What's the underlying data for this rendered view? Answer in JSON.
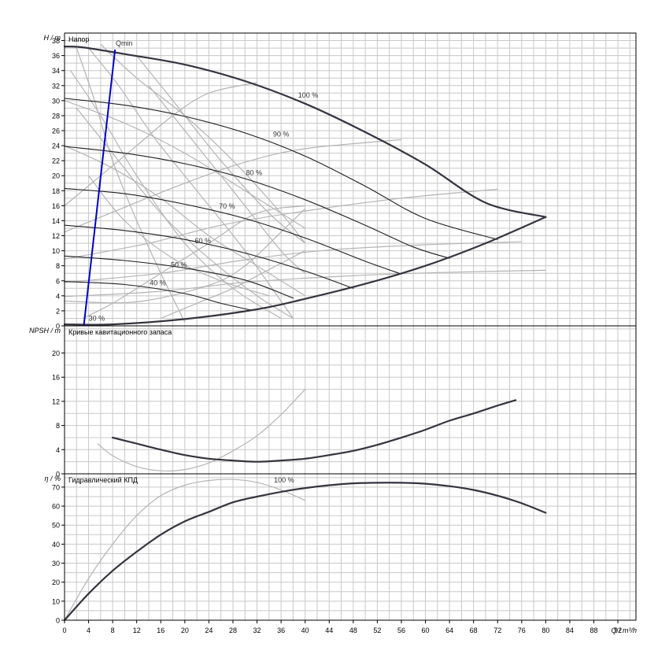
{
  "chart_data": [
    {
      "type": "line",
      "panel": "head",
      "title": "Напор",
      "ylabel": "H / m",
      "xlabel": "Q / m³/h",
      "xlim": [
        0,
        95
      ],
      "ylim": [
        0,
        39
      ],
      "yticks": [
        0,
        2,
        4,
        6,
        8,
        10,
        12,
        14,
        16,
        18,
        20,
        22,
        24,
        26,
        28,
        30,
        32,
        34,
        36,
        38
      ],
      "grid": true,
      "series": [
        {
          "name": "100 %",
          "label_at": [
            40.5,
            30.4
          ],
          "points": [
            [
              0,
              37.2
            ],
            [
              3,
              37.1
            ],
            [
              10,
              36.2
            ],
            [
              20,
              34.8
            ],
            [
              30,
              32.6
            ],
            [
              40,
              29.6
            ],
            [
              50,
              25.8
            ],
            [
              60,
              21.5
            ],
            [
              70,
              16.4
            ],
            [
              80,
              14.5
            ]
          ]
        },
        {
          "name": "90 %",
          "label_at": [
            36,
            25.2
          ],
          "points": [
            [
              0,
              30.3
            ],
            [
              10,
              29.4
            ],
            [
              20,
              27.9
            ],
            [
              30,
              25.7
            ],
            [
              40,
              22.6
            ],
            [
              50,
              18.6
            ],
            [
              60,
              14.3
            ],
            [
              72,
              11.5
            ]
          ]
        },
        {
          "name": "80 %",
          "label_at": [
            31.5,
            20.1
          ],
          "points": [
            [
              0,
              23.9
            ],
            [
              10,
              23.0
            ],
            [
              20,
              21.6
            ],
            [
              30,
              19.6
            ],
            [
              40,
              16.8
            ],
            [
              50,
              13.4
            ],
            [
              58,
              10.5
            ],
            [
              64,
              9.0
            ]
          ]
        },
        {
          "name": "70 %",
          "label_at": [
            27,
            15.6
          ],
          "points": [
            [
              0,
              18.3
            ],
            [
              10,
              17.6
            ],
            [
              20,
              16.2
            ],
            [
              30,
              14.3
            ],
            [
              40,
              11.7
            ],
            [
              50,
              8.6
            ],
            [
              56,
              6.9
            ]
          ]
        },
        {
          "name": "60 %",
          "label_at": [
            23,
            11.0
          ],
          "points": [
            [
              0,
              13.4
            ],
            [
              10,
              12.7
            ],
            [
              20,
              11.5
            ],
            [
              30,
              9.7
            ],
            [
              40,
              7.3
            ],
            [
              48,
              5.0
            ]
          ]
        },
        {
          "name": "50 %",
          "label_at": [
            19,
            7.8
          ],
          "points": [
            [
              0,
              9.3
            ],
            [
              10,
              8.7
            ],
            [
              20,
              7.7
            ],
            [
              30,
              6.1
            ],
            [
              38,
              3.7
            ]
          ]
        },
        {
          "name": "40 %",
          "label_at": [
            15.5,
            5.4
          ],
          "points": [
            [
              0,
              5.9
            ],
            [
              10,
              5.5
            ],
            [
              20,
              4.3
            ],
            [
              26,
              3.0
            ],
            [
              31,
              2.1
            ]
          ]
        },
        {
          "name": "",
          "role": "min-curve",
          "points": [
            [
              0,
              0.2
            ],
            [
              8,
              0.2
            ],
            [
              20,
              0.9
            ],
            [
              32,
              2.2
            ],
            [
              40,
              3.6
            ],
            [
              50,
              5.6
            ],
            [
              60,
              8.0
            ],
            [
              70,
              11.0
            ],
            [
              80,
              14.5
            ]
          ]
        }
      ],
      "annotations": [
        {
          "text": "Qmin",
          "at": [
            8.5,
            37.3
          ]
        },
        {
          "text": "30 %",
          "at": [
            4,
            0.7
          ]
        }
      ],
      "qmin_line": [
        [
          3.2,
          0
        ],
        [
          8.4,
          36.8
        ]
      ],
      "bg_curves": [
        [
          [
            2,
            37
          ],
          [
            5,
            30
          ],
          [
            8,
            22
          ],
          [
            12,
            14
          ],
          [
            16,
            7
          ],
          [
            20,
            0.5
          ]
        ],
        [
          [
            4,
            37
          ],
          [
            9,
            32
          ],
          [
            15,
            25
          ],
          [
            22,
            18
          ],
          [
            30,
            10
          ],
          [
            38,
            1
          ]
        ],
        [
          [
            6,
            37.5
          ],
          [
            12,
            33
          ],
          [
            20,
            28
          ],
          [
            28,
            22
          ],
          [
            36,
            15
          ],
          [
            40,
            11
          ]
        ],
        [
          [
            0,
            16
          ],
          [
            6,
            20
          ],
          [
            12,
            24
          ],
          [
            18,
            28
          ],
          [
            24,
            31
          ],
          [
            32,
            32.4
          ]
        ],
        [
          [
            0,
            12.5
          ],
          [
            10,
            15.8
          ],
          [
            20,
            19
          ],
          [
            30,
            21.8
          ],
          [
            40,
            23.6
          ],
          [
            56,
            24.8
          ]
        ],
        [
          [
            0,
            8.9
          ],
          [
            14,
            11
          ],
          [
            26,
            13.4
          ],
          [
            40,
            15.3
          ],
          [
            56,
            17
          ],
          [
            72,
            18.2
          ]
        ],
        [
          [
            0,
            5.8
          ],
          [
            16,
            7
          ],
          [
            30,
            8.8
          ],
          [
            44,
            10.1
          ],
          [
            60,
            10.8
          ],
          [
            76,
            11.2
          ]
        ],
        [
          [
            0,
            3.9
          ],
          [
            16,
            4.6
          ],
          [
            30,
            5.8
          ],
          [
            46,
            6.6
          ],
          [
            62,
            7.1
          ],
          [
            80,
            7.4
          ]
        ],
        [
          [
            2,
            29
          ],
          [
            8,
            23
          ],
          [
            16,
            15
          ],
          [
            24,
            9
          ],
          [
            32,
            4
          ],
          [
            38,
            1
          ]
        ],
        [
          [
            1,
            34
          ],
          [
            6,
            28
          ],
          [
            12,
            20
          ],
          [
            20,
            11
          ],
          [
            28,
            5
          ],
          [
            36,
            1
          ]
        ],
        [
          [
            12,
            36
          ],
          [
            18,
            30
          ],
          [
            26,
            22
          ],
          [
            34,
            15
          ],
          [
            40,
            11
          ]
        ],
        [
          [
            14,
            32
          ],
          [
            20,
            26
          ],
          [
            28,
            18
          ],
          [
            36,
            10
          ],
          [
            40,
            7
          ]
        ],
        [
          [
            4,
            20
          ],
          [
            10,
            14
          ],
          [
            18,
            9
          ],
          [
            26,
            6
          ],
          [
            34,
            4
          ]
        ],
        [
          [
            0,
            3.3
          ],
          [
            12,
            3.2
          ],
          [
            24,
            5.4
          ],
          [
            30,
            8
          ],
          [
            36,
            12.5
          ],
          [
            40,
            15.6
          ]
        ],
        [
          [
            3,
            1
          ],
          [
            8,
            3
          ],
          [
            16,
            7
          ],
          [
            24,
            11
          ],
          [
            32,
            15
          ],
          [
            40,
            16
          ]
        ],
        [
          [
            16,
            1
          ],
          [
            22,
            3
          ],
          [
            28,
            5
          ],
          [
            34,
            7.5
          ],
          [
            40,
            10
          ]
        ],
        [
          [
            0,
            24
          ],
          [
            8,
            21
          ],
          [
            16,
            17
          ],
          [
            24,
            12
          ],
          [
            32,
            8
          ],
          [
            40,
            4
          ]
        ],
        [
          [
            0,
            30
          ],
          [
            10,
            27
          ],
          [
            20,
            23
          ],
          [
            30,
            18
          ],
          [
            40,
            13
          ]
        ]
      ]
    },
    {
      "type": "line",
      "panel": "npsh",
      "title": "Кривые кавитационного запаса",
      "ylabel": "NPSH / m",
      "xlim": [
        0,
        95
      ],
      "ylim": [
        0,
        24.5
      ],
      "yticks": [
        0,
        4,
        8,
        12,
        16,
        20
      ],
      "grid": true,
      "series": [
        {
          "name": "",
          "points": [
            [
              8,
              6.0
            ],
            [
              12,
              5.0
            ],
            [
              16,
              4.0
            ],
            [
              20,
              3.1
            ],
            [
              24,
              2.5
            ],
            [
              28,
              2.2
            ],
            [
              32,
              2.0
            ],
            [
              36,
              2.2
            ],
            [
              40,
              2.5
            ],
            [
              44,
              3.1
            ],
            [
              48,
              3.8
            ],
            [
              52,
              4.8
            ],
            [
              56,
              6.0
            ],
            [
              60,
              7.3
            ],
            [
              64,
              8.8
            ],
            [
              68,
              10.0
            ],
            [
              72,
              11.3
            ],
            [
              75,
              12.2
            ]
          ]
        }
      ],
      "bg_curves": [
        [
          [
            5.5,
            5.0
          ],
          [
            8,
            3.0
          ],
          [
            12,
            1.2
          ],
          [
            16,
            0.5
          ],
          [
            20,
            0.7
          ],
          [
            24,
            1.8
          ],
          [
            28,
            3.8
          ],
          [
            32,
            6.3
          ],
          [
            36,
            9.8
          ],
          [
            40,
            14.0
          ]
        ]
      ]
    },
    {
      "type": "line",
      "panel": "eta",
      "title": "Гидравлический КПД",
      "ylabel": "η / %",
      "xlim": [
        0,
        95
      ],
      "ylim": [
        0,
        77
      ],
      "yticks": [
        0,
        10,
        20,
        30,
        40,
        50,
        60,
        70
      ],
      "grid": true,
      "series": [
        {
          "name": "100 %",
          "label_at": [
            36.5,
            72.5
          ],
          "points": [
            [
              0,
              0
            ],
            [
              4,
              14
            ],
            [
              8,
              26
            ],
            [
              12,
              36
            ],
            [
              16,
              45
            ],
            [
              20,
              52
            ],
            [
              24,
              57
            ],
            [
              28,
              62
            ],
            [
              32,
              65
            ],
            [
              36,
              67.5
            ],
            [
              40,
              69.5
            ],
            [
              44,
              71
            ],
            [
              48,
              72
            ],
            [
              52,
              72.3
            ],
            [
              56,
              72.3
            ],
            [
              60,
              71.8
            ],
            [
              64,
              70.5
            ],
            [
              68,
              68.5
            ],
            [
              72,
              65.5
            ],
            [
              76,
              61.5
            ],
            [
              80,
              56.5
            ]
          ]
        }
      ],
      "bg_curves": [
        [
          [
            0,
            0
          ],
          [
            4,
            22
          ],
          [
            8,
            40
          ],
          [
            12,
            55
          ],
          [
            16,
            65.5
          ],
          [
            20,
            71
          ],
          [
            24,
            73.5
          ],
          [
            28,
            74
          ],
          [
            32,
            72.5
          ],
          [
            36,
            68.5
          ],
          [
            40,
            63
          ]
        ]
      ]
    }
  ],
  "x_axis": {
    "label": "Q / m³/h",
    "ticks": [
      0,
      4,
      8,
      12,
      16,
      20,
      24,
      28,
      32,
      36,
      40,
      44,
      48,
      52,
      56,
      60,
      64,
      68,
      72,
      76,
      80,
      84,
      88,
      92
    ]
  },
  "colors": {
    "grid": "#c8c8c8",
    "frame": "#000000",
    "main_curve": "#34353f",
    "speed_curve": "#1e1e24",
    "background_curve": "#b4b4b4",
    "qmin_line": "#0000cc"
  }
}
